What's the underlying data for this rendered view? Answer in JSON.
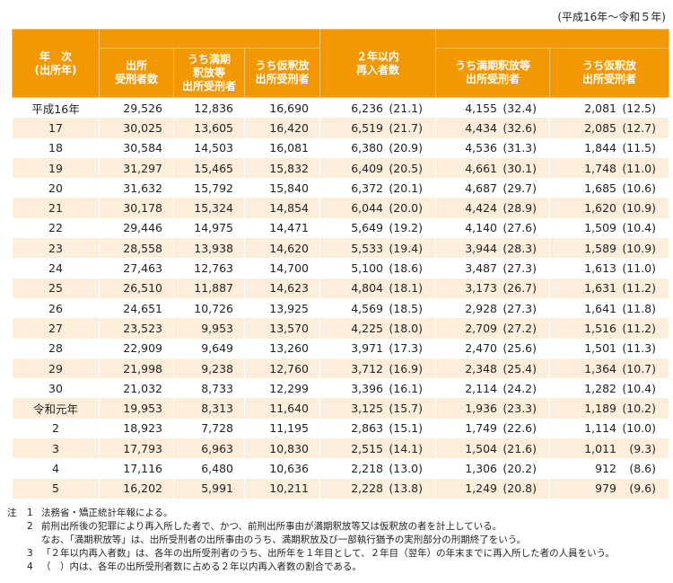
{
  "range_label": "(平成16年～令和５年)",
  "headers": {
    "year": "年　次\n(出所年)",
    "released": "出所\n受刑者数",
    "released_full": "うち満期\n釈放等\n出所受刑者",
    "released_parole": "うち仮釈放\n出所受刑者",
    "reentry": "２年以内\n再入者数",
    "reentry_full": "うち満期釈放等\n出所受刑者",
    "reentry_parole": "うち仮釈放\n出所受刑者"
  },
  "rows": [
    {
      "year": "平成16年",
      "a": "29,526",
      "b": "12,836",
      "c": "16,690",
      "d": "6,236",
      "dp": "(21.1)",
      "e": "4,155",
      "ep": "(32.4)",
      "f": "2,081",
      "fp": "(12.5)"
    },
    {
      "year": "17",
      "a": "30,025",
      "b": "13,605",
      "c": "16,420",
      "d": "6,519",
      "dp": "(21.7)",
      "e": "4,434",
      "ep": "(32.6)",
      "f": "2,085",
      "fp": "(12.7)"
    },
    {
      "year": "18",
      "a": "30,584",
      "b": "14,503",
      "c": "16,081",
      "d": "6,380",
      "dp": "(20.9)",
      "e": "4,536",
      "ep": "(31.3)",
      "f": "1,844",
      "fp": "(11.5)"
    },
    {
      "year": "19",
      "a": "31,297",
      "b": "15,465",
      "c": "15,832",
      "d": "6,409",
      "dp": "(20.5)",
      "e": "4,661",
      "ep": "(30.1)",
      "f": "1,748",
      "fp": "(11.0)"
    },
    {
      "year": "20",
      "a": "31,632",
      "b": "15,792",
      "c": "15,840",
      "d": "6,372",
      "dp": "(20.1)",
      "e": "4,687",
      "ep": "(29.7)",
      "f": "1,685",
      "fp": "(10.6)"
    },
    {
      "year": "21",
      "a": "30,178",
      "b": "15,324",
      "c": "14,854",
      "d": "6,044",
      "dp": "(20.0)",
      "e": "4,424",
      "ep": "(28.9)",
      "f": "1,620",
      "fp": "(10.9)"
    },
    {
      "year": "22",
      "a": "29,446",
      "b": "14,975",
      "c": "14,471",
      "d": "5,649",
      "dp": "(19.2)",
      "e": "4,140",
      "ep": "(27.6)",
      "f": "1,509",
      "fp": "(10.4)"
    },
    {
      "year": "23",
      "a": "28,558",
      "b": "13,938",
      "c": "14,620",
      "d": "5,533",
      "dp": "(19.4)",
      "e": "3,944",
      "ep": "(28.3)",
      "f": "1,589",
      "fp": "(10.9)"
    },
    {
      "year": "24",
      "a": "27,463",
      "b": "12,763",
      "c": "14,700",
      "d": "5,100",
      "dp": "(18.6)",
      "e": "3,487",
      "ep": "(27.3)",
      "f": "1,613",
      "fp": "(11.0)"
    },
    {
      "year": "25",
      "a": "26,510",
      "b": "11,887",
      "c": "14,623",
      "d": "4,804",
      "dp": "(18.1)",
      "e": "3,173",
      "ep": "(26.7)",
      "f": "1,631",
      "fp": "(11.2)"
    },
    {
      "year": "26",
      "a": "24,651",
      "b": "10,726",
      "c": "13,925",
      "d": "4,569",
      "dp": "(18.5)",
      "e": "2,928",
      "ep": "(27.3)",
      "f": "1,641",
      "fp": "(11.8)"
    },
    {
      "year": "27",
      "a": "23,523",
      "b": "9,953",
      "c": "13,570",
      "d": "4,225",
      "dp": "(18.0)",
      "e": "2,709",
      "ep": "(27.2)",
      "f": "1,516",
      "fp": "(11.2)"
    },
    {
      "year": "28",
      "a": "22,909",
      "b": "9,649",
      "c": "13,260",
      "d": "3,971",
      "dp": "(17.3)",
      "e": "2,470",
      "ep": "(25.6)",
      "f": "1,501",
      "fp": "(11.3)"
    },
    {
      "year": "29",
      "a": "21,998",
      "b": "9,238",
      "c": "12,760",
      "d": "3,712",
      "dp": "(16.9)",
      "e": "2,348",
      "ep": "(25.4)",
      "f": "1,364",
      "fp": "(10.7)"
    },
    {
      "year": "30",
      "a": "21,032",
      "b": "8,733",
      "c": "12,299",
      "d": "3,396",
      "dp": "(16.1)",
      "e": "2,114",
      "ep": "(24.2)",
      "f": "1,282",
      "fp": "(10.4)"
    },
    {
      "year": "令和元年",
      "a": "19,953",
      "b": "8,313",
      "c": "11,640",
      "d": "3,125",
      "dp": "(15.7)",
      "e": "1,936",
      "ep": "(23.3)",
      "f": "1,189",
      "fp": "(10.2)"
    },
    {
      "year": "2",
      "a": "18,923",
      "b": "7,728",
      "c": "11,195",
      "d": "2,863",
      "dp": "(15.1)",
      "e": "1,749",
      "ep": "(22.6)",
      "f": "1,114",
      "fp": "(10.0)"
    },
    {
      "year": "3",
      "a": "17,793",
      "b": "6,963",
      "c": "10,830",
      "d": "2,515",
      "dp": "(14.1)",
      "e": "1,504",
      "ep": "(21.6)",
      "f": "1,011",
      "fp": "(9.3)"
    },
    {
      "year": "4",
      "a": "17,116",
      "b": "6,480",
      "c": "10,636",
      "d": "2,218",
      "dp": "(13.0)",
      "e": "1,306",
      "ep": "(20.2)",
      "f": "912",
      "fp": "(8.6)"
    },
    {
      "year": "5",
      "a": "16,202",
      "b": "5,991",
      "c": "10,211",
      "d": "2,228",
      "dp": "(13.8)",
      "e": "1,249",
      "ep": "(20.8)",
      "f": "979",
      "fp": "(9.6)"
    }
  ],
  "notes": {
    "label": "注",
    "items": [
      {
        "num": "1",
        "text": "法務省・矯正統計年報による。"
      },
      {
        "num": "2",
        "text": "前刑出所後の犯罪により再入所した者で、かつ、前刑出所事由が満期釈放等又は仮釈放の者を計上している。"
      },
      {
        "num": "",
        "text": "なお、「満期釈放等」は、出所受刑者の出所事由のうち、満期釈放及び一部執行猶予の実刑部分の刑期終了をいう。"
      },
      {
        "num": "3",
        "text": "「２年以内再入者数」は、各年の出所受刑者のうち、出所年を１年目として、２年目（翌年）の年末までに再入所した者の人員をいう。"
      },
      {
        "num": "4",
        "text": "（　）内は、各年の出所受刑者数に占める２年以内再入者数の割合である。"
      }
    ]
  },
  "colors": {
    "header_bg": "#f39800",
    "alt_row": "#fdeedb"
  }
}
